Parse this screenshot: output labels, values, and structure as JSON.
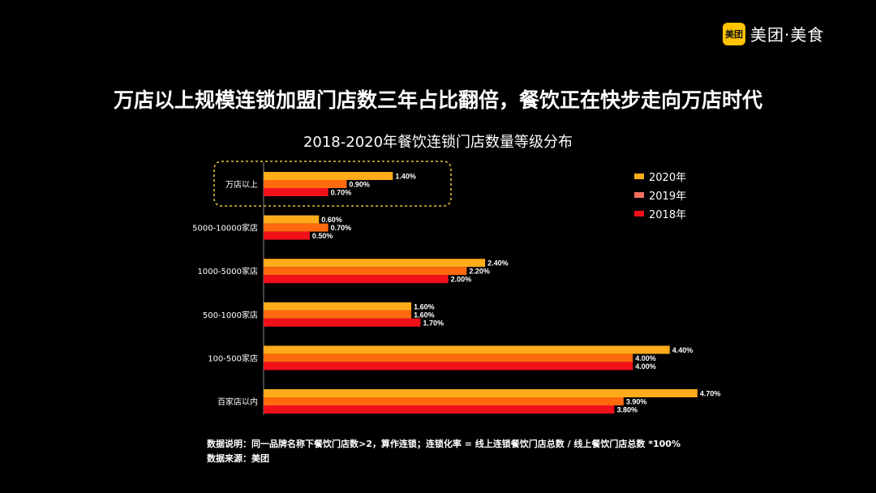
{
  "logo": {
    "badge_text": "美团",
    "text": "美团·美食",
    "brand_color": "#ffc300"
  },
  "title": "万店以上规模连锁加盟门店数三年占比翻倍，餐饮正在快步走向万店时代",
  "chart_data": {
    "type": "bar",
    "orientation": "horizontal",
    "title": "2018-2020年餐饮连锁门店数量等级分布",
    "categories": [
      "万店以上",
      "5000-10000家店",
      "1000-5000家店",
      "500-1000家店",
      "100-500家店",
      "百家店以内"
    ],
    "series": [
      {
        "name": "2020年",
        "values": [
          1.4,
          0.6,
          2.4,
          1.6,
          4.4,
          4.7
        ],
        "labels": [
          "1.40%",
          "0.60%",
          "2.40%",
          "1.60%",
          "4.40%",
          "4.70%"
        ],
        "color": "#ffab1a",
        "legend_color": "#ffab1a"
      },
      {
        "name": "2019年",
        "values": [
          0.9,
          0.7,
          2.2,
          1.6,
          4.0,
          3.9
        ],
        "labels": [
          "0.90%",
          "0.70%",
          "2.20%",
          "1.60%",
          "4.00%",
          "3.90%"
        ],
        "color": "#ff6a0e",
        "legend_color": "#f46e5e"
      },
      {
        "name": "2018年",
        "values": [
          0.7,
          0.5,
          2.0,
          1.7,
          4.0,
          3.8
        ],
        "labels": [
          "0.70%",
          "0.50%",
          "2.00%",
          "1.70%",
          "4.00%",
          "3.80%"
        ],
        "color": "#f0101a",
        "legend_color": "#f0101a"
      }
    ],
    "unit": "%",
    "xlim": [
      0,
      5
    ],
    "grid": false,
    "legend_position": "top-right",
    "highlight": {
      "category": "万店以上",
      "style": "dashed yellow box",
      "color": "#e6c23a"
    }
  },
  "notes": {
    "description": "数据说明：同一品牌名称下餐饮门店数>2，算作连锁；连锁化率 = 线上连锁餐饮门店总数 / 线上餐饮门店总数 *100%",
    "source": "数据来源：美团"
  }
}
